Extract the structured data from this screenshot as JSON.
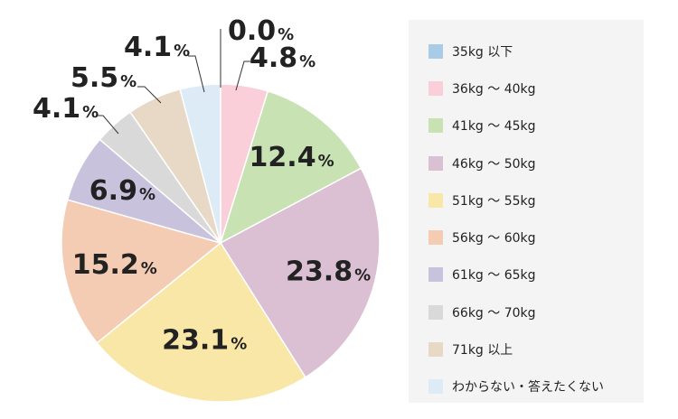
{
  "chart_data": {
    "type": "pie",
    "categories": [
      "35kg 以下",
      "36kg ～ 40kg",
      "41kg ～ 45kg",
      "46kg ～ 50kg",
      "51kg ～ 55kg",
      "56kg ～ 60kg",
      "61kg ～ 65kg",
      "66kg ～ 70kg",
      "71kg 以上",
      "わからない・答えたくない"
    ],
    "values": [
      0.0,
      4.8,
      12.4,
      23.8,
      23.1,
      15.2,
      6.9,
      4.1,
      5.5,
      4.1
    ],
    "value_labels": [
      "0.0",
      "4.8",
      "12.4",
      "23.8",
      "23.1",
      "15.2",
      "6.9",
      "4.1",
      "5.5",
      "4.1"
    ],
    "unit": "%",
    "colors": [
      "#a9cbe6",
      "#fbcfda",
      "#c8e2b4",
      "#dbbfd3",
      "#f8e7a6",
      "#f4ccb4",
      "#c9c2dc",
      "#d9d9d9",
      "#e8d9c7",
      "#dcebf5"
    ],
    "legend_position": "right"
  }
}
